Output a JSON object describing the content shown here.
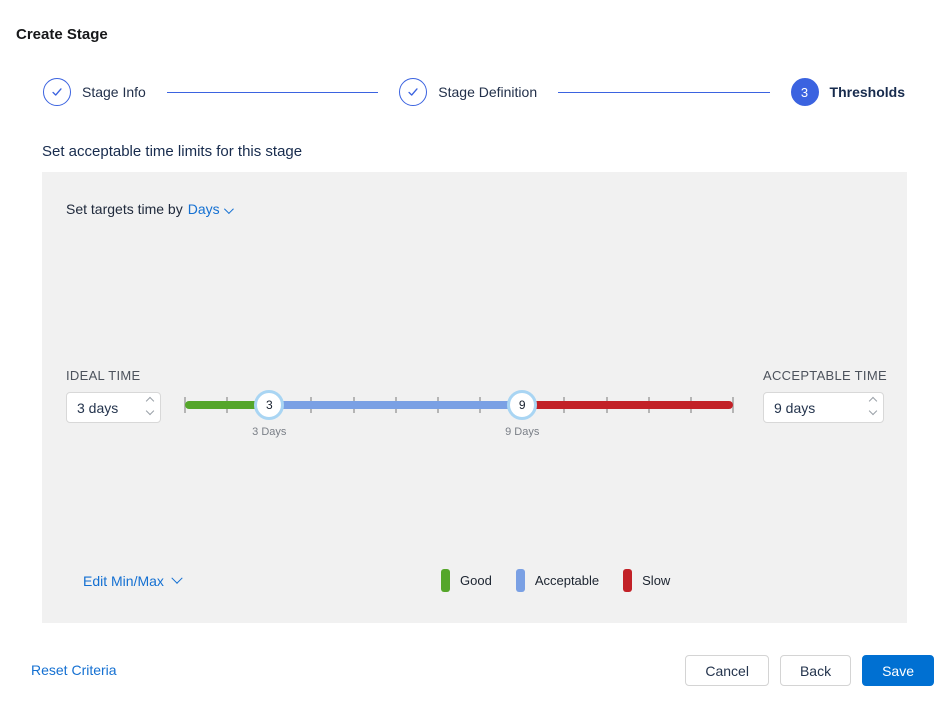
{
  "page": {
    "title": "Create Stage"
  },
  "stepper": {
    "steps": [
      {
        "label": "Stage Info",
        "state": "complete"
      },
      {
        "label": "Stage Definition",
        "state": "complete"
      },
      {
        "label": "Thresholds",
        "number": "3",
        "state": "current"
      }
    ]
  },
  "section": {
    "heading": "Set acceptable time limits for this stage"
  },
  "panel": {
    "target_time": {
      "prefix": "Set targets time by",
      "selected": "Days"
    },
    "ideal": {
      "label": "IDEAL TIME",
      "value": "3 days"
    },
    "acceptable": {
      "label": "ACCEPTABLE TIME",
      "value": "9 days"
    },
    "slider": {
      "min": 1,
      "max": 14,
      "tick_color": "#b5b5b5",
      "handle_ring_color": "#a9d5f3",
      "handles": [
        {
          "value": 3,
          "label": "3 Days"
        },
        {
          "value": 9,
          "label": "9 Days"
        }
      ],
      "segments": [
        {
          "name": "good",
          "from": 1,
          "to": 3,
          "color": "#55a62a"
        },
        {
          "name": "acceptable",
          "from": 3,
          "to": 9,
          "color": "#7aa0e4"
        },
        {
          "name": "slow",
          "from": 9,
          "to": 14,
          "color": "#c22127"
        }
      ]
    },
    "edit_minmax": {
      "label": "Edit Min/Max"
    },
    "legend": [
      {
        "label": "Good",
        "color": "#55a62a"
      },
      {
        "label": "Acceptable",
        "color": "#7aa0e4"
      },
      {
        "label": "Slow",
        "color": "#c22127"
      }
    ]
  },
  "footer": {
    "reset": "Reset Criteria",
    "cancel": "Cancel",
    "back": "Back",
    "save": "Save"
  },
  "colors": {
    "accent_blue": "#3b63e0",
    "link_blue": "#1470d2",
    "save_blue": "#0070d2",
    "panel_grey": "#f1f1f1"
  }
}
